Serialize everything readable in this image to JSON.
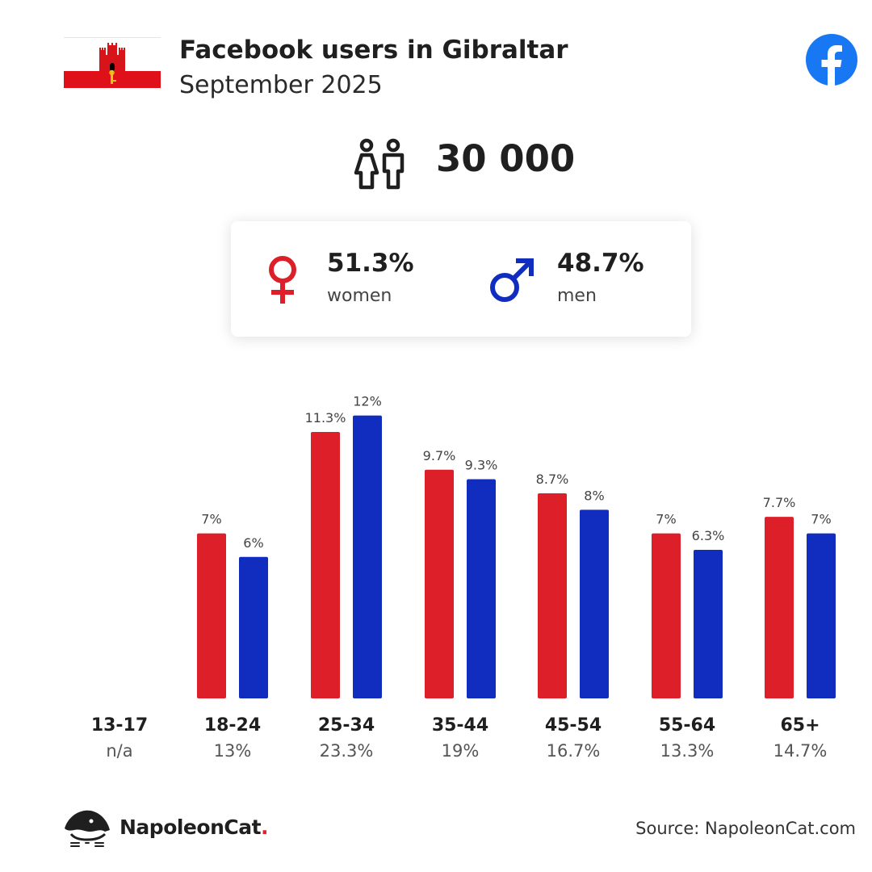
{
  "header": {
    "title": "Facebook users in Gibraltar",
    "subtitle": "September 2025",
    "flag_icon": "gibraltar-flag-icon",
    "platform_icon": "facebook-icon"
  },
  "summary": {
    "total_users": "30 000",
    "women_pct": "51.3%",
    "women_label": "women",
    "men_pct": "48.7%",
    "men_label": "men"
  },
  "colors": {
    "women": "#dd1f29",
    "men": "#102dbf",
    "facebook": "#1877f2"
  },
  "chart_data": {
    "type": "bar",
    "categories": [
      "13-17",
      "18-24",
      "25-34",
      "35-44",
      "45-54",
      "55-64",
      "65+"
    ],
    "category_totals": [
      "n/a",
      "13%",
      "23.3%",
      "19%",
      "16.7%",
      "13.3%",
      "14.7%"
    ],
    "series": [
      {
        "key": "women",
        "values": [
          null,
          7,
          11.3,
          9.7,
          8.7,
          7,
          7.7
        ],
        "labels": [
          "",
          "7%",
          "11.3%",
          "9.7%",
          "8.7%",
          "7%",
          "7.7%"
        ]
      },
      {
        "key": "men",
        "values": [
          null,
          6,
          12,
          9.3,
          8,
          6.3,
          7
        ],
        "labels": [
          "",
          "6%",
          "12%",
          "9.3%",
          "8%",
          "6.3%",
          "7%"
        ]
      }
    ],
    "grid": false
  },
  "footer": {
    "brand": "NapoleonCat",
    "brand_dot": ".",
    "source": "Source: NapoleonCat.com"
  }
}
